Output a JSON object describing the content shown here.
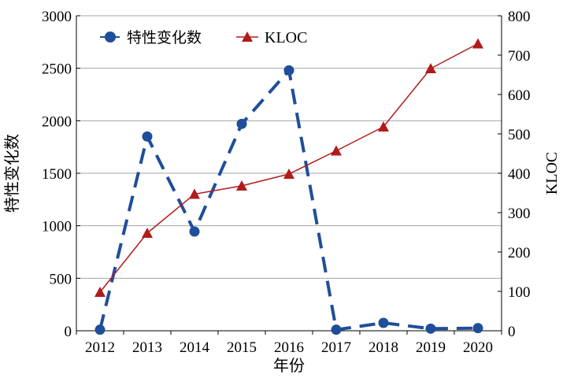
{
  "chart_data": {
    "type": "line",
    "title": "",
    "categories": [
      "2012",
      "2013",
      "2014",
      "2015",
      "2016",
      "2017",
      "2018",
      "2019",
      "2020"
    ],
    "xlabel": "年份",
    "ylabel_left": "特性变化数",
    "ylabel_right": "KLOC",
    "ylim_left": [
      0,
      3000
    ],
    "ylim_right": [
      0,
      800
    ],
    "yticks_left": [
      0,
      500,
      1000,
      1500,
      2000,
      2500,
      3000
    ],
    "yticks_right": [
      0,
      100,
      200,
      300,
      400,
      500,
      600,
      700,
      800
    ],
    "grid": "horizontal",
    "legend_position": "top-left",
    "series": [
      {
        "name": "特性变化数",
        "axis": "left",
        "color": "#1f4e9a",
        "marker": "circle",
        "line_style": "dashed",
        "values": [
          10,
          1850,
          945,
          1970,
          2480,
          10,
          75,
          20,
          25
        ]
      },
      {
        "name": "KLOC",
        "axis": "right",
        "color": "#b01c1c",
        "marker": "triangle",
        "line_style": "solid",
        "values": [
          98,
          248,
          347,
          368,
          398,
          457,
          518,
          666,
          729
        ]
      }
    ]
  }
}
